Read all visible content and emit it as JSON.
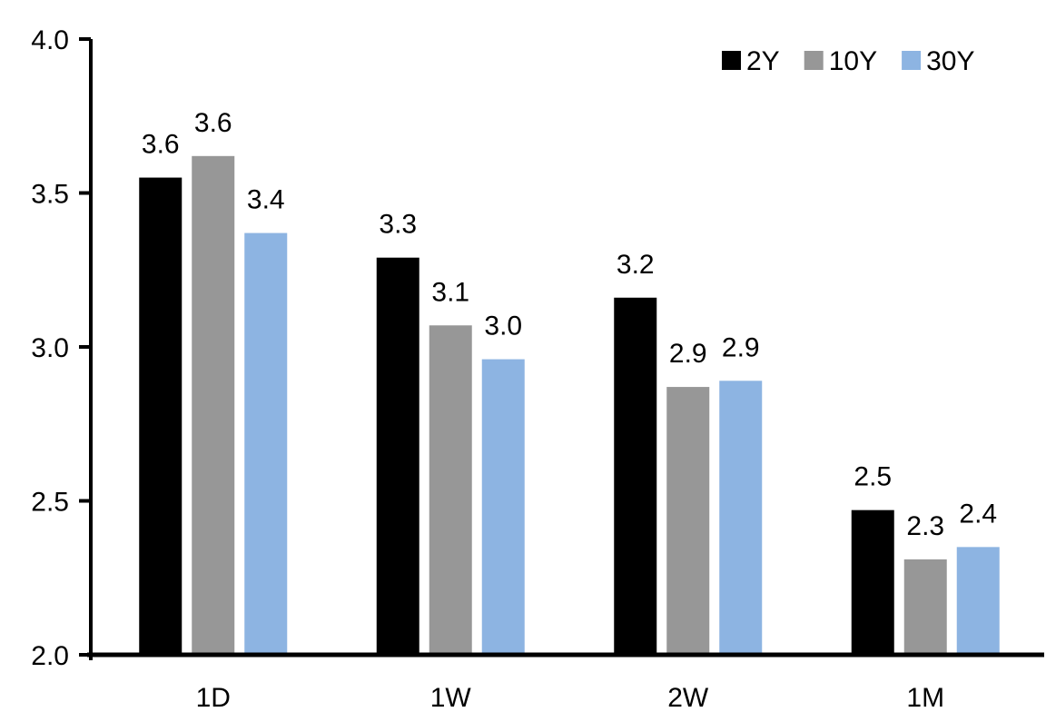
{
  "chart_data": {
    "type": "bar",
    "title": "",
    "xlabel": "",
    "ylabel": "",
    "categories": [
      "1D",
      "1W",
      "2W",
      "1M"
    ],
    "series": [
      {
        "name": "2Y",
        "color": "#000000",
        "values": [
          3.55,
          3.29,
          3.16,
          2.47
        ],
        "labels": [
          "3.6",
          "3.3",
          "3.2",
          "2.5"
        ]
      },
      {
        "name": "10Y",
        "color": "#979797",
        "values": [
          3.62,
          3.07,
          2.87,
          2.31
        ],
        "labels": [
          "3.6",
          "3.1",
          "2.9",
          "2.3"
        ]
      },
      {
        "name": "30Y",
        "color": "#8DB4E2",
        "values": [
          3.37,
          2.96,
          2.89,
          2.35
        ],
        "labels": [
          "3.4",
          "3.0",
          "2.9",
          "2.4"
        ]
      }
    ],
    "ylim": [
      2.0,
      4.0
    ],
    "yticks": [
      "2.0",
      "2.5",
      "3.0",
      "3.5",
      "4.0"
    ],
    "ytick_values": [
      2.0,
      2.5,
      3.0,
      3.5,
      4.0
    ],
    "grid": false,
    "legend_position": "top-right",
    "axis_color": "#000000",
    "text_color": "#000000",
    "background": "#FFFFFF"
  }
}
